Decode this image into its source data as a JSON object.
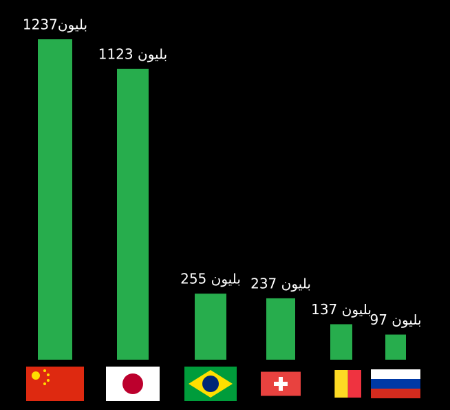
{
  "chart_data": {
    "type": "bar",
    "categories": [
      null,
      null,
      null,
      null,
      null,
      null
    ],
    "values": [
      1237,
      1123,
      255,
      237,
      137,
      97
    ],
    "value_labels": [
      "1237بليون",
      "1123 بليون",
      "255 بليون",
      "237 بليون",
      "137 بليون",
      "97 بليون"
    ],
    "color": "#27ad4d"
  }
}
